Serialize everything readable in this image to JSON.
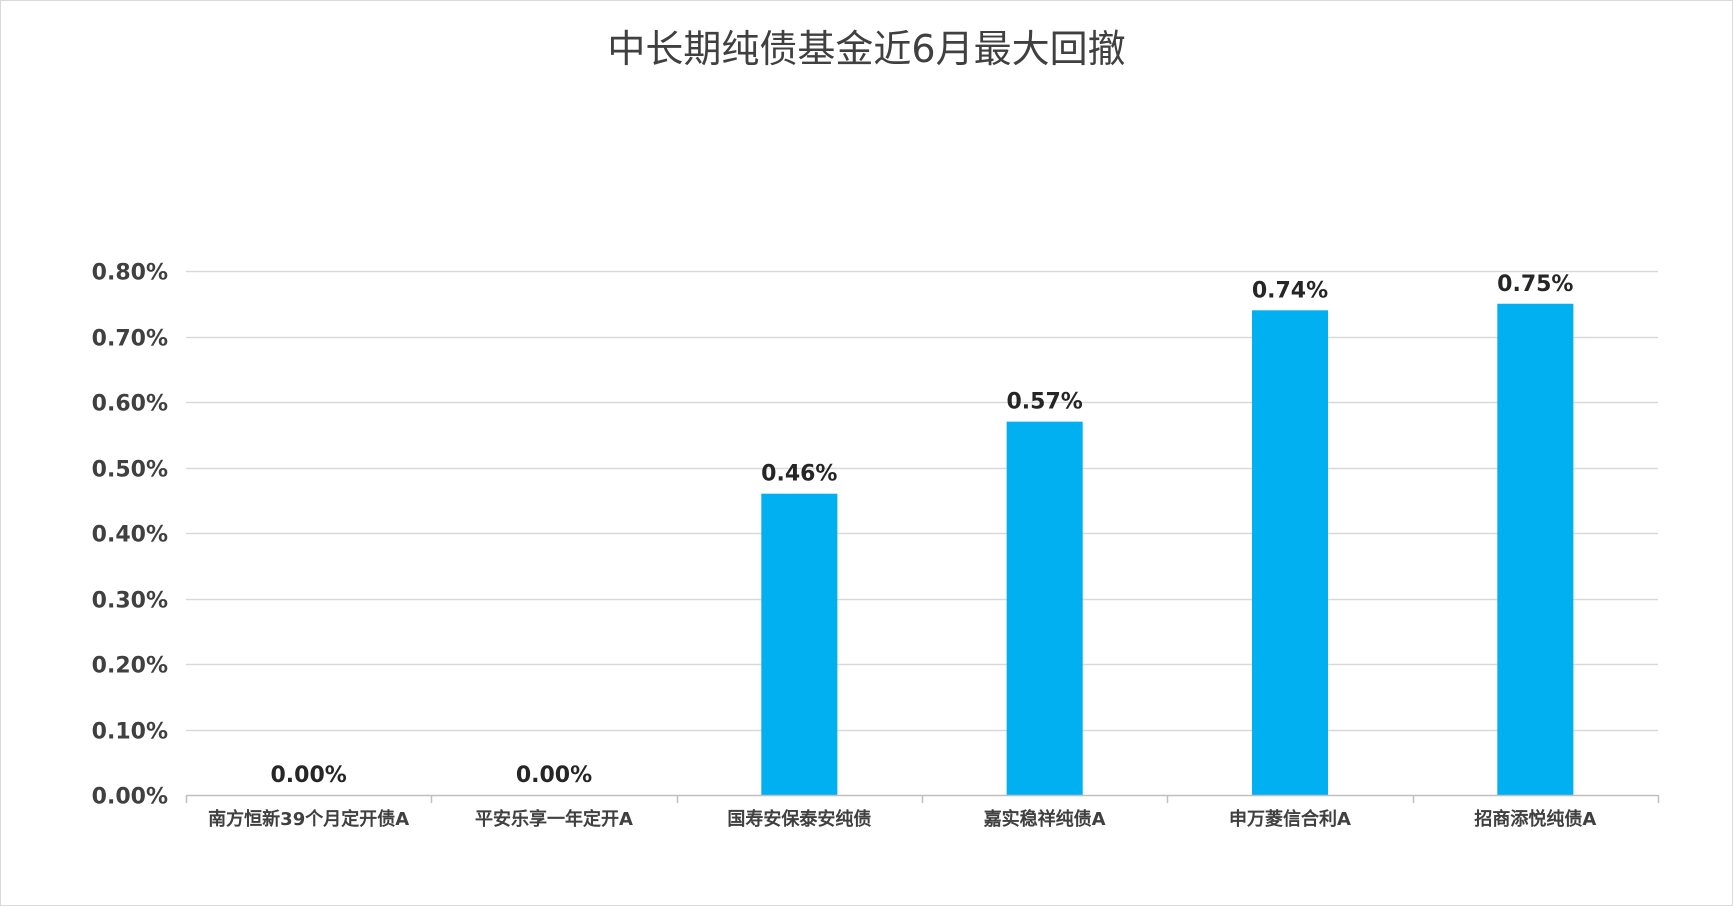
{
  "chart_data": {
    "type": "bar",
    "title": "中长期纯债基金近6月最大回撤",
    "categories": [
      "南方恒新39个月定开债A",
      "平安乐享一年定开A",
      "国寿安保泰安纯债",
      "嘉实稳祥纯债A",
      "申万菱信合利A",
      "招商添悦纯债A"
    ],
    "values": [
      0.0,
      0.0,
      0.46,
      0.57,
      0.74,
      0.75
    ],
    "data_labels": [
      "0.00%",
      "0.00%",
      "0.46%",
      "0.57%",
      "0.74%",
      "0.75%"
    ],
    "ylim": [
      0,
      0.8
    ],
    "yticks": [
      0.0,
      0.1,
      0.2,
      0.3,
      0.4,
      0.5,
      0.6,
      0.7,
      0.8
    ],
    "ytick_labels": [
      "0.00%",
      "0.10%",
      "0.20%",
      "0.30%",
      "0.40%",
      "0.50%",
      "0.60%",
      "0.70%",
      "0.80%"
    ],
    "xlabel": "",
    "ylabel": "",
    "grid": true,
    "legend": "none",
    "bar_color": "#00B0F0",
    "grid_color": "#d9d9d9"
  }
}
